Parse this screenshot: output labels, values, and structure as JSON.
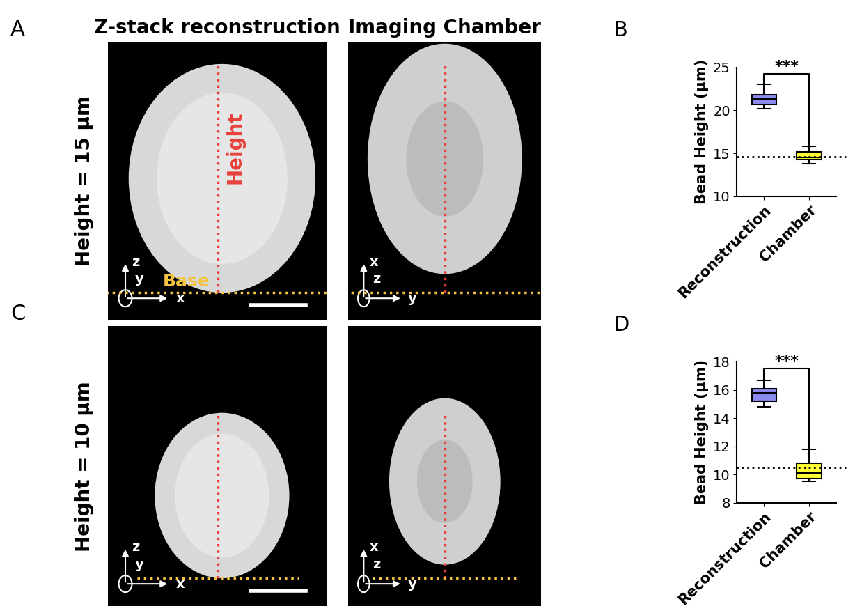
{
  "images": {
    "columns": [
      "Z-stack reconstruction",
      "Imaging Chamber"
    ],
    "height_label": "Height",
    "base_label": "Base",
    "rows": [
      {
        "panel": "A",
        "label": "Height = 15 µm",
        "left_axes": {
          "vertical": "z",
          "horizontal": "x",
          "out": "y"
        },
        "right_axes": {
          "vertical": "x",
          "horizontal": "y",
          "out": "z"
        }
      },
      {
        "panel": "C",
        "label": "Height = 10 µm",
        "left_axes": {
          "vertical": "z",
          "horizontal": "x",
          "out": "y"
        },
        "right_axes": {
          "vertical": "x",
          "horizontal": "y",
          "out": "z"
        }
      }
    ]
  },
  "chart_data": [
    {
      "type": "box",
      "panel": "B",
      "ylabel": "Bead Height (µm)",
      "categories": [
        "Reconstruction",
        "Chamber"
      ],
      "colors": [
        "#8c8cf0",
        "#ffff33"
      ],
      "stats": [
        {
          "whislo": 20.2,
          "q1": 20.7,
          "med": 21.3,
          "q3": 21.8,
          "whishi": 23.0
        },
        {
          "whislo": 13.8,
          "q1": 14.3,
          "med": 14.5,
          "q3": 15.2,
          "whishi": 15.8
        }
      ],
      "reference_line": 14.6,
      "significance": "***",
      "ylim": [
        10,
        25
      ],
      "yticks": [
        10,
        15,
        20,
        25
      ]
    },
    {
      "type": "box",
      "panel": "D",
      "ylabel": "Bead Height (µm)",
      "categories": [
        "Reconstruction",
        "Chamber"
      ],
      "colors": [
        "#8c8cf0",
        "#ffff33"
      ],
      "stats": [
        {
          "whislo": 14.8,
          "q1": 15.2,
          "med": 15.8,
          "q3": 16.1,
          "whishi": 16.7
        },
        {
          "whislo": 9.5,
          "q1": 9.7,
          "med": 10.1,
          "q3": 10.8,
          "whishi": 11.8
        }
      ],
      "reference_line": 10.5,
      "significance": "***",
      "ylim": [
        8,
        18
      ],
      "yticks": [
        8,
        10,
        12,
        14,
        16,
        18
      ]
    }
  ]
}
